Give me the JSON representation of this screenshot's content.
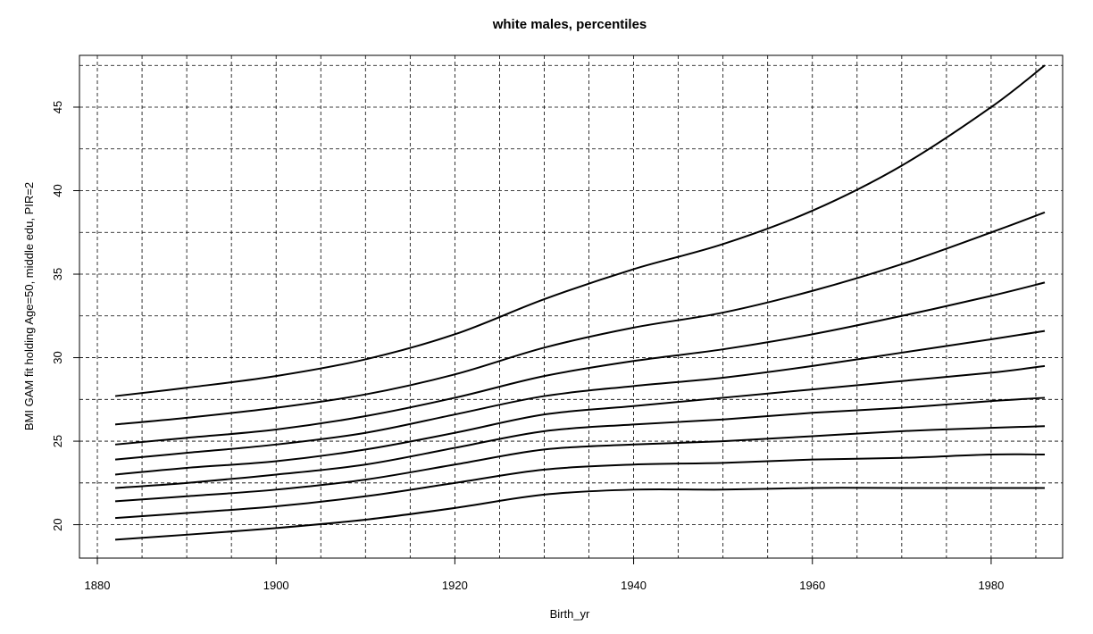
{
  "chart_data": {
    "type": "line",
    "title": "white males, percentiles",
    "xlabel": "Birth_yr",
    "ylabel": "BMI GAM fit holding Age=50, middle edu, PIR=2",
    "xlim": [
      1878,
      1988
    ],
    "ylim": [
      18.0,
      48.1
    ],
    "x_ticks": [
      1880,
      1900,
      1920,
      1940,
      1960,
      1980
    ],
    "y_ticks": [
      20,
      25,
      30,
      35,
      40,
      45
    ],
    "grid": true,
    "grid_x": [
      1880,
      1885,
      1890,
      1895,
      1900,
      1905,
      1910,
      1915,
      1920,
      1925,
      1930,
      1935,
      1940,
      1945,
      1950,
      1955,
      1960,
      1965,
      1970,
      1975,
      1980,
      1985
    ],
    "grid_y": [
      20,
      22.5,
      25,
      27.5,
      30,
      32.5,
      35,
      37.5,
      40,
      42.5,
      45,
      47.5
    ],
    "x": [
      1882,
      1890,
      1900,
      1910,
      1920,
      1930,
      1940,
      1950,
      1960,
      1970,
      1980,
      1986
    ],
    "series": [
      {
        "values": [
          19.1,
          19.4,
          19.8,
          20.3,
          21.0,
          21.8,
          22.1,
          22.1,
          22.2,
          22.2,
          22.2,
          22.2
        ]
      },
      {
        "values": [
          20.4,
          20.7,
          21.1,
          21.7,
          22.5,
          23.3,
          23.6,
          23.7,
          23.9,
          24.0,
          24.2,
          24.2
        ]
      },
      {
        "values": [
          21.4,
          21.7,
          22.1,
          22.7,
          23.6,
          24.5,
          24.8,
          25.0,
          25.3,
          25.6,
          25.8,
          25.9
        ]
      },
      {
        "values": [
          22.2,
          22.5,
          23.0,
          23.6,
          24.6,
          25.6,
          26.0,
          26.3,
          26.7,
          27.0,
          27.4,
          27.6
        ]
      },
      {
        "values": [
          23.0,
          23.4,
          23.8,
          24.5,
          25.5,
          26.6,
          27.1,
          27.6,
          28.1,
          28.6,
          29.1,
          29.5
        ]
      },
      {
        "values": [
          23.9,
          24.3,
          24.8,
          25.5,
          26.6,
          27.7,
          28.3,
          28.8,
          29.5,
          30.3,
          31.1,
          31.6
        ]
      },
      {
        "values": [
          24.8,
          25.2,
          25.7,
          26.5,
          27.6,
          28.9,
          29.8,
          30.5,
          31.4,
          32.5,
          33.7,
          34.5
        ]
      },
      {
        "values": [
          26.0,
          26.4,
          27.0,
          27.8,
          29.0,
          30.6,
          31.8,
          32.7,
          34.0,
          35.6,
          37.5,
          38.7
        ]
      },
      {
        "values": [
          27.7,
          28.2,
          28.9,
          29.9,
          31.4,
          33.5,
          35.3,
          36.8,
          38.8,
          41.5,
          45.0,
          47.5
        ]
      }
    ]
  }
}
